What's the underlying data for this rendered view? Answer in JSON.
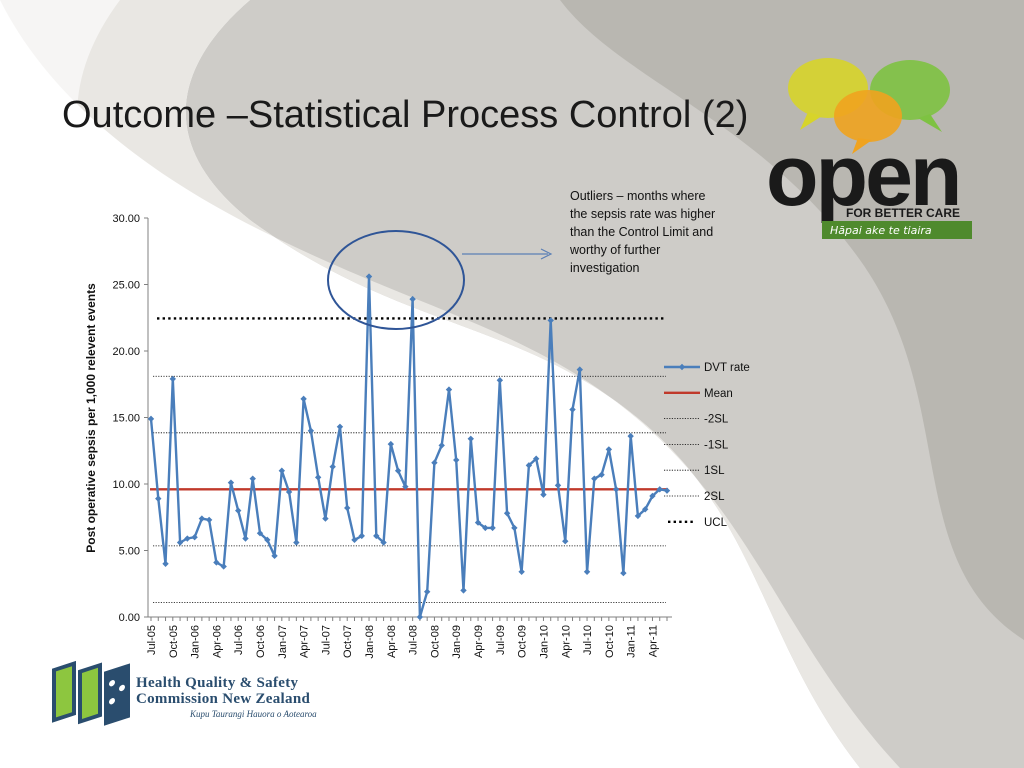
{
  "slide": {
    "title": "Outcome –Statistical Process Control (2)",
    "callout": "Outliers – months where the sepsis rate was higher than the Control Limit and worthy of further investigation"
  },
  "logos": {
    "open_word": "open",
    "open_tagline": "FOR BETTER CARE",
    "open_maori": "Hāpai ake te tiaira",
    "hqsc_line1": "Health Quality & Safety",
    "hqsc_line2": "Commission New Zealand",
    "hqsc_line3": "Kupu Taurangi Hauora o Aotearoa"
  },
  "colors": {
    "series": "#4a7ebb",
    "mean": "#c0392b",
    "limits": "#000000",
    "logo_green": "#8dc63f",
    "logo_blue": "#2a4d6e"
  },
  "chart_data": {
    "type": "line",
    "ylabel": "Post operative sepsis per 1,000 relevent events",
    "xlabel": "",
    "ylim": [
      0,
      30
    ],
    "yticks": [
      "0.00",
      "5.00",
      "10.00",
      "15.00",
      "20.00",
      "25.00",
      "30.00"
    ],
    "x": [
      "Jul-05",
      "Aug-05",
      "Sep-05",
      "Oct-05",
      "Nov-05",
      "Dec-05",
      "Jan-06",
      "Feb-06",
      "Mar-06",
      "Apr-06",
      "May-06",
      "Jun-06",
      "Jul-06",
      "Aug-06",
      "Sep-06",
      "Oct-06",
      "Nov-06",
      "Dec-06",
      "Jan-07",
      "Feb-07",
      "Mar-07",
      "Apr-07",
      "May-07",
      "Jun-07",
      "Jul-07",
      "Aug-07",
      "Sep-07",
      "Oct-07",
      "Nov-07",
      "Dec-07",
      "Jan-08",
      "Feb-08",
      "Mar-08",
      "Apr-08",
      "May-08",
      "Jun-08",
      "Jul-08",
      "Aug-08",
      "Sep-08",
      "Oct-08",
      "Nov-08",
      "Dec-08",
      "Jan-09",
      "Feb-09",
      "Mar-09",
      "Apr-09",
      "May-09",
      "Jun-09",
      "Jul-09",
      "Aug-09",
      "Sep-09",
      "Oct-09",
      "Nov-09",
      "Dec-09",
      "Jan-10",
      "Feb-10",
      "Mar-10",
      "Apr-10",
      "May-10",
      "Jun-10",
      "Jul-10",
      "Aug-10",
      "Sep-10",
      "Oct-10",
      "Nov-10",
      "Dec-10",
      "Jan-11",
      "Feb-11",
      "Mar-11",
      "Apr-11",
      "May-11",
      "Jun-11"
    ],
    "xtick_labels": [
      "Jul-05",
      "Oct-05",
      "Jan-06",
      "Apr-06",
      "Jul-06",
      "Oct-06",
      "Jan-07",
      "Apr-07",
      "Jul-07",
      "Oct-07",
      "Jan-08",
      "Apr-08",
      "Jul-08",
      "Oct-08",
      "Jan-09",
      "Apr-09",
      "Jul-09",
      "Oct-09",
      "Jan-10",
      "Apr-10",
      "Jul-10",
      "Oct-10",
      "Jan-11",
      "Apr-11"
    ],
    "series": [
      {
        "name": "DVT rate",
        "values": [
          14.9,
          8.9,
          4.0,
          17.9,
          5.6,
          5.9,
          6.0,
          7.4,
          7.3,
          4.1,
          3.8,
          10.1,
          8.0,
          5.9,
          10.4,
          6.3,
          5.8,
          4.6,
          11.0,
          9.4,
          5.6,
          16.4,
          14.0,
          10.5,
          7.4,
          11.3,
          14.3,
          8.2,
          5.8,
          6.1,
          25.6,
          6.1,
          5.6,
          13.0,
          11.0,
          9.8,
          23.9,
          0.0,
          1.9,
          11.6,
          12.9,
          17.1,
          11.8,
          2.0,
          13.4,
          7.1,
          6.7,
          6.7,
          17.8,
          7.8,
          6.7,
          3.4,
          11.4,
          11.9,
          9.2,
          22.3,
          9.9,
          5.7,
          15.6,
          18.6,
          3.4,
          10.4,
          10.7,
          12.6,
          9.6,
          3.3,
          13.6,
          7.6,
          8.1,
          9.1,
          9.6,
          9.5
        ]
      }
    ],
    "mean": 9.6,
    "limits": [
      {
        "name": "-2SL",
        "value": 1.1,
        "style": "dotted-thin"
      },
      {
        "name": "-1SL",
        "value": 5.35,
        "style": "dotted-thin"
      },
      {
        "name": "1SL",
        "value": 13.85,
        "style": "dotted-thin"
      },
      {
        "name": "2SL",
        "value": 18.1,
        "style": "dotted-thin"
      },
      {
        "name": "UCL",
        "value": 22.45,
        "style": "dotted-thick"
      }
    ],
    "legend": [
      "DVT rate",
      "Mean",
      "-2SL",
      "-1SL",
      "1SL",
      "2SL",
      "UCL"
    ],
    "legend_position": "right",
    "grid": false,
    "annotations": [
      "ellipse around Jan-08 and Jul-08 peaks",
      "arrow from ellipse to callout text"
    ]
  }
}
